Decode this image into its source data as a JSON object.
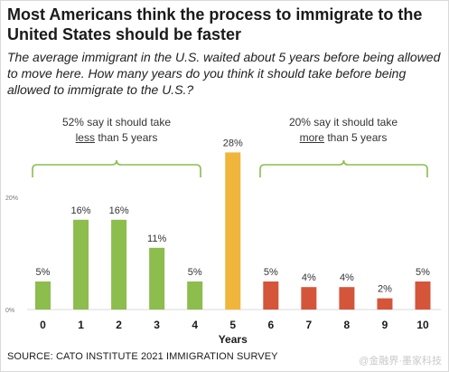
{
  "header": {
    "title": "Most Americans think the process to immigrate to the United States should be faster",
    "subtitle": "The average immigrant in the U.S. waited about 5 years before being allowed to move here. How many years do you think it should take before being allowed to immigrate to the U.S.?"
  },
  "brackets": {
    "left": {
      "line1": "52% say it should take",
      "underlined": "less",
      "line2_rest": " than 5 years"
    },
    "right": {
      "line1": "20% say it should take",
      "underlined": "more",
      "line2_rest": " than 5 years"
    }
  },
  "colors": {
    "less": "#8cbd4d",
    "equal": "#f0b53a",
    "more": "#d4553a",
    "bracket": "#8cbd4d",
    "gridline": "#d9d9d9"
  },
  "chart_data": {
    "type": "bar",
    "categories": [
      "0",
      "1",
      "2",
      "3",
      "4",
      "5",
      "6",
      "7",
      "8",
      "9",
      "10"
    ],
    "values": [
      5,
      16,
      16,
      11,
      5,
      28,
      5,
      4,
      4,
      2,
      5
    ],
    "data_labels": [
      "5%",
      "16%",
      "16%",
      "11%",
      "5%",
      "28%",
      "5%",
      "4%",
      "4%",
      "2%",
      "5%"
    ],
    "groups": [
      "less",
      "less",
      "less",
      "less",
      "less",
      "equal",
      "more",
      "more",
      "more",
      "more",
      "more"
    ],
    "xlabel": "Years",
    "ylabel": "",
    "yticks": [
      "0%",
      "20%"
    ],
    "ytick_values": [
      0,
      20
    ],
    "ylim": [
      0,
      30
    ],
    "grid": false,
    "legend": "none"
  },
  "footer": {
    "source": "SOURCE: CATO INSTITUTE 2021 IMMIGRATION SURVEY",
    "watermark": "@金融界·墨家科技"
  }
}
